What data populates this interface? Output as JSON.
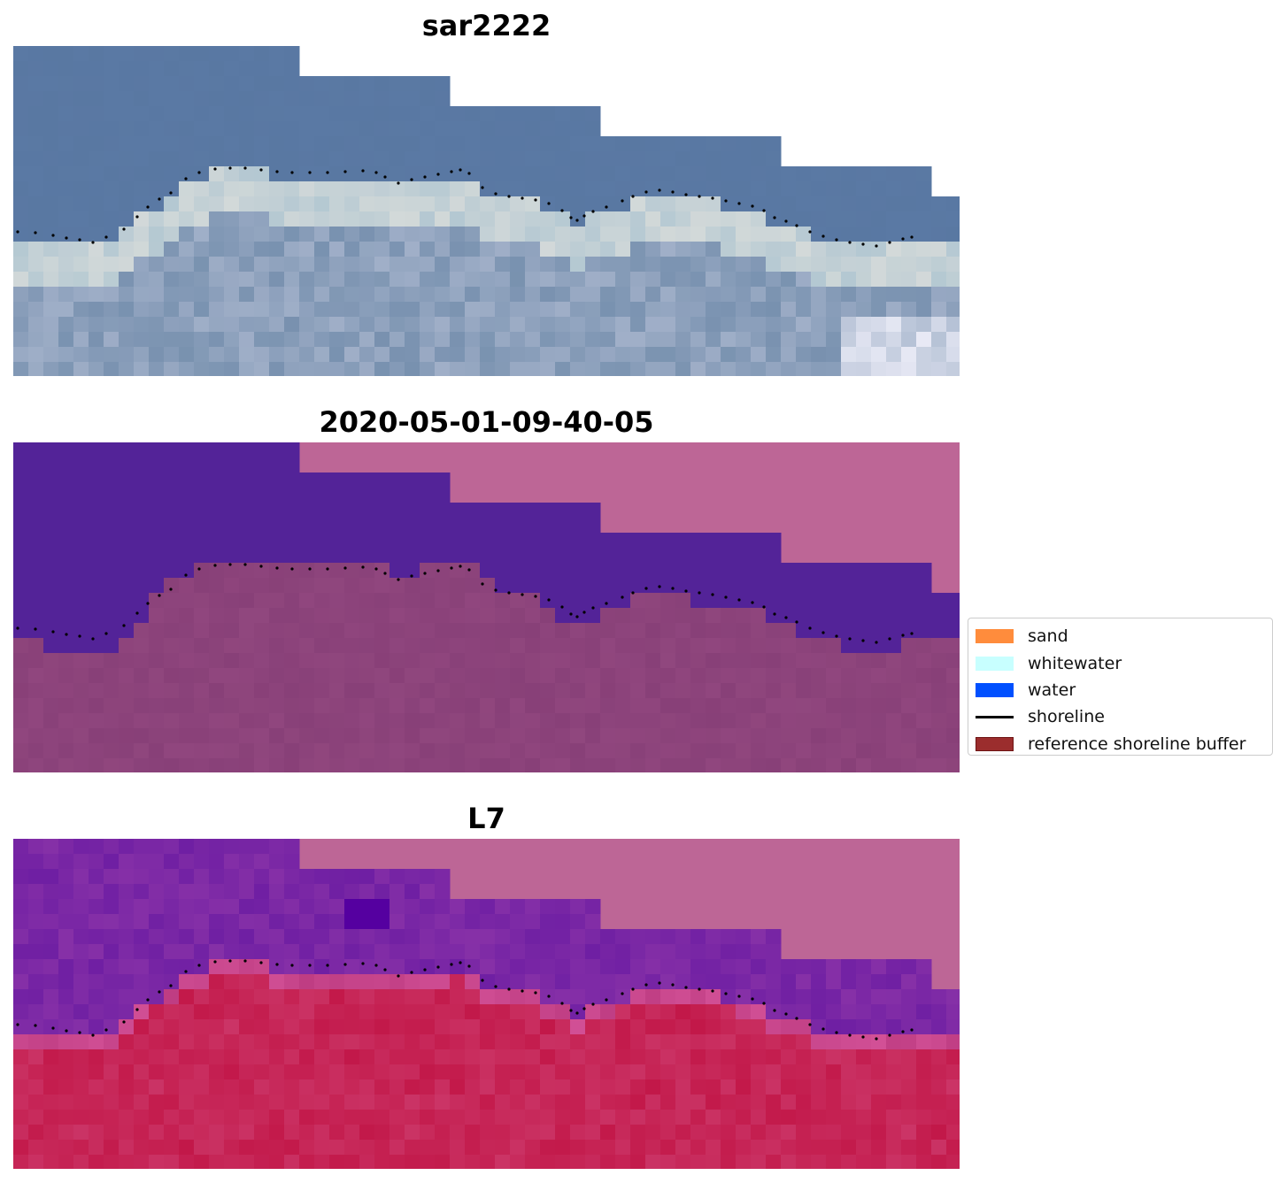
{
  "panels": [
    {
      "id": "rgb",
      "title": "sar2222"
    },
    {
      "id": "classified",
      "title": "2020-05-01-09-40-05"
    },
    {
      "id": "index",
      "title": "L7"
    }
  ],
  "legend": {
    "items": [
      {
        "label": "sand",
        "color": "#ff8c3c",
        "kind": "patch"
      },
      {
        "label": "whitewater",
        "color": "#c8ffff",
        "kind": "patch"
      },
      {
        "label": "water",
        "color": "#0050ff",
        "kind": "patch"
      },
      {
        "label": "shoreline",
        "color": "#000000",
        "kind": "line"
      },
      {
        "label": "reference shoreline buffer",
        "color": "#9b2d2d",
        "kind": "patch",
        "edge": "#6e1414"
      }
    ]
  },
  "colors": {
    "nodata": "#bd6696",
    "rgb_water": "#5a79a4",
    "classified_water": "#532398",
    "classified_land": "#884078",
    "index_water": "#6f1fa3",
    "index_land": "#c21748"
  }
}
